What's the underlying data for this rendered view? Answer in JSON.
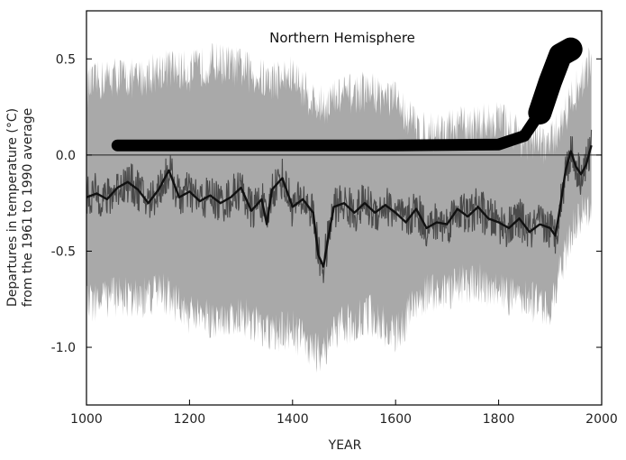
{
  "chart_data": {
    "type": "line",
    "title": "Northern Hemisphere",
    "xlabel": "YEAR",
    "ylabel_line1": "Departures in temperature (°C)",
    "ylabel_line2": "from the 1961 to 1990 average",
    "xlim": [
      1000,
      2000
    ],
    "ylim": [
      -1.3,
      0.75
    ],
    "x_ticks": [
      1000,
      1200,
      1400,
      1600,
      1800,
      2000
    ],
    "y_ticks": [
      0.5,
      0.0,
      -0.5,
      -1.0
    ],
    "y_tick_labels": [
      "0.5",
      "0.0",
      "-0.5",
      "-1.0"
    ],
    "zero_line": 0.0,
    "grid": false,
    "legend": "none",
    "colors": {
      "uncertainty_band": "#a9a9a9",
      "annual_series": "#4a4a4a",
      "smoothed_series": "#111111",
      "hockey_stick": "#000000",
      "axes": "#000000"
    },
    "series": [
      {
        "role": "uncertainty_band",
        "x": [
          1000,
          1050,
          1100,
          1150,
          1200,
          1250,
          1300,
          1350,
          1400,
          1450,
          1500,
          1550,
          1600,
          1650,
          1700,
          1750,
          1800,
          1850,
          1900,
          1950,
          1980
        ],
        "upper": [
          0.32,
          0.38,
          0.36,
          0.42,
          0.4,
          0.45,
          0.42,
          0.35,
          0.38,
          0.22,
          0.28,
          0.3,
          0.25,
          0.08,
          0.1,
          0.12,
          0.15,
          0.05,
          0.02,
          0.3,
          0.45
        ],
        "lower": [
          -0.75,
          -0.7,
          -0.72,
          -0.68,
          -0.8,
          -0.82,
          -0.8,
          -0.9,
          -0.88,
          -1.0,
          -0.85,
          -0.8,
          -0.9,
          -0.7,
          -0.68,
          -0.62,
          -0.68,
          -0.72,
          -0.75,
          -0.3,
          -0.25
        ]
      },
      {
        "role": "smoothed",
        "x": [
          1000,
          1020,
          1040,
          1060,
          1080,
          1100,
          1120,
          1140,
          1160,
          1180,
          1200,
          1220,
          1240,
          1260,
          1280,
          1300,
          1320,
          1340,
          1350,
          1360,
          1380,
          1400,
          1420,
          1440,
          1450,
          1460,
          1470,
          1480,
          1500,
          1520,
          1540,
          1560,
          1580,
          1600,
          1620,
          1640,
          1660,
          1680,
          1700,
          1720,
          1740,
          1760,
          1780,
          1800,
          1820,
          1840,
          1860,
          1880,
          1900,
          1910,
          1920,
          1930,
          1940,
          1950,
          1960,
          1970,
          1980
        ],
        "y": [
          -0.22,
          -0.2,
          -0.23,
          -0.17,
          -0.14,
          -0.18,
          -0.25,
          -0.18,
          -0.08,
          -0.22,
          -0.19,
          -0.24,
          -0.21,
          -0.25,
          -0.22,
          -0.17,
          -0.29,
          -0.23,
          -0.36,
          -0.18,
          -0.12,
          -0.27,
          -0.23,
          -0.3,
          -0.52,
          -0.58,
          -0.42,
          -0.27,
          -0.25,
          -0.3,
          -0.25,
          -0.3,
          -0.26,
          -0.3,
          -0.35,
          -0.28,
          -0.38,
          -0.35,
          -0.36,
          -0.28,
          -0.32,
          -0.27,
          -0.33,
          -0.35,
          -0.38,
          -0.33,
          -0.4,
          -0.36,
          -0.38,
          -0.42,
          -0.26,
          -0.08,
          0.02,
          -0.06,
          -0.1,
          -0.05,
          0.05
        ]
      },
      {
        "role": "hockey_stick",
        "x": [
          1060,
          1200,
          1400,
          1600,
          1800,
          1850,
          1880,
          1900,
          1920,
          1940
        ],
        "y": [
          0.05,
          0.05,
          0.05,
          0.05,
          0.055,
          0.1,
          0.22,
          0.38,
          0.52,
          0.55
        ]
      }
    ]
  }
}
